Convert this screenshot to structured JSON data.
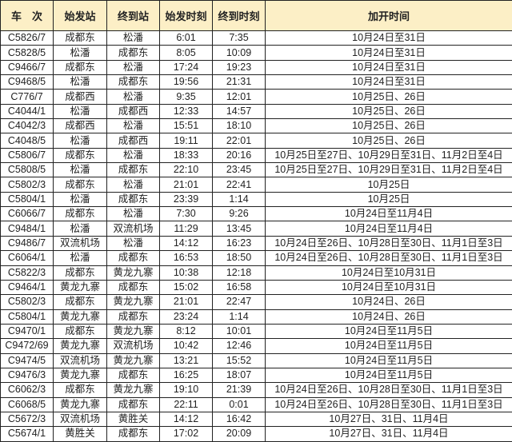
{
  "header": {
    "columns": [
      "车　次",
      "始发站",
      "终到站",
      "始发时刻",
      "终到时刻",
      "加开时间"
    ]
  },
  "header_bg": "#fcefc6",
  "rows": [
    [
      "C5826/7",
      "成都东",
      "松潘",
      "6:01",
      "7:35",
      "10月24日至31日"
    ],
    [
      "C5828/5",
      "松潘",
      "成都东",
      "8:05",
      "10:09",
      "10月24日至31日"
    ],
    [
      "C9466/7",
      "成都东",
      "松潘",
      "17:24",
      "19:23",
      "10月24日至31日"
    ],
    [
      "C9468/5",
      "松潘",
      "成都东",
      "19:56",
      "21:31",
      "10月24日至31日"
    ],
    [
      "C776/7",
      "成都西",
      "松潘",
      "9:35",
      "12:01",
      "10月25日、26日"
    ],
    [
      "C4044/1",
      "松潘",
      "成都西",
      "12:33",
      "14:57",
      "10月25日、26日"
    ],
    [
      "C4042/3",
      "成都西",
      "松潘",
      "15:51",
      "18:10",
      "10月25日、26日"
    ],
    [
      "C4048/5",
      "松潘",
      "成都西",
      "19:11",
      "22:01",
      "10月25日、26日"
    ],
    [
      "C5806/7",
      "成都东",
      "松潘",
      "18:33",
      "20:16",
      "10月25日至27日、10月29日至31日、11月2日至4日"
    ],
    [
      "C5808/5",
      "松潘",
      "成都东",
      "22:10",
      "23:45",
      "10月25日至27日、10月29日至31日、11月2日至4日"
    ],
    [
      "C5802/3",
      "成都东",
      "松潘",
      "21:01",
      "22:41",
      "10月25日"
    ],
    [
      "C5804/1",
      "松潘",
      "成都东",
      "23:39",
      "1:14",
      "10月25日"
    ],
    [
      "C6066/7",
      "成都东",
      "松潘",
      "7:30",
      "9:26",
      "10月24日至11月4日"
    ],
    [
      "C9484/1",
      "松潘",
      "双流机场",
      "11:29",
      "13:45",
      "10月24日至11月4日"
    ],
    [
      "C9486/7",
      "双流机场",
      "松潘",
      "14:12",
      "16:23",
      "10月24日至26日、10月28日至30日、11月1日至3日"
    ],
    [
      "C6064/1",
      "松潘",
      "成都东",
      "16:53",
      "18:50",
      "10月24日至26日、10月28日至30日、11月1日至3日"
    ],
    [
      "C5822/3",
      "成都东",
      "黄龙九寨",
      "10:38",
      "12:18",
      "10月24日至10月31日"
    ],
    [
      "C9464/1",
      "黄龙九寨",
      "成都东",
      "15:02",
      "16:58",
      "10月24日至10月31日"
    ],
    [
      "C5802/3",
      "成都东",
      "黄龙九寨",
      "21:01",
      "22:47",
      "10月24日、26日"
    ],
    [
      "C5804/1",
      "黄龙九寨",
      "成都东",
      "23:24",
      "1:14",
      "10月24日、26日"
    ],
    [
      "C9470/1",
      "成都东",
      "黄龙九寨",
      "8:12",
      "10:01",
      "10月24日至11月5日"
    ],
    [
      "C9472/69",
      "黄龙九寨",
      "双流机场",
      "10:42",
      "12:46",
      "10月24日至11月5日"
    ],
    [
      "C9474/5",
      "双流机场",
      "黄龙九寨",
      "13:21",
      "15:52",
      "10月24日至11月5日"
    ],
    [
      "C9476/3",
      "黄龙九寨",
      "成都东",
      "16:25",
      "18:07",
      "10月24日至11月5日"
    ],
    [
      "C6062/3",
      "成都东",
      "黄龙九寨",
      "19:10",
      "21:39",
      "10月24日至26日、10月28日至30日、11月1日至3日"
    ],
    [
      "C6068/5",
      "黄龙九寨",
      "成都东",
      "22:11",
      "0:01",
      "10月24日至26日、10月28日至30日、11月1日至3日"
    ],
    [
      "C5672/3",
      "双流机场",
      "黄胜关",
      "14:12",
      "16:42",
      "10月27日、31日、11月4日"
    ],
    [
      "C5674/1",
      "黄胜关",
      "成都东",
      "17:02",
      "20:09",
      "10月27日、31日、11月4日"
    ]
  ]
}
